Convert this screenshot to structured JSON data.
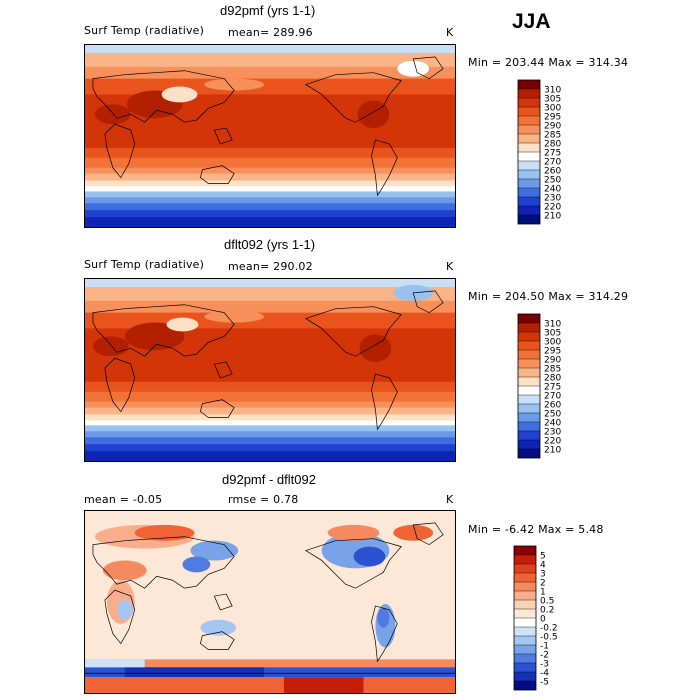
{
  "season": "JJA",
  "chart_data": [
    {
      "type": "heatmap",
      "title": "d92pmf (yrs 1-1)",
      "variable": "Surf Temp (radiative)",
      "mean_label": "mean=",
      "mean_value": "289.96",
      "units": "K",
      "min_label": "Min =",
      "min_value": "203.44",
      "max_label": "Max =",
      "max_value": "314.34",
      "colorbar": {
        "levels": [
          "310",
          "305",
          "300",
          "295",
          "290",
          "285",
          "280",
          "275",
          "270",
          "260",
          "250",
          "240",
          "230",
          "220",
          "210"
        ],
        "colors": [
          "#7a0000",
          "#b22000",
          "#d43508",
          "#e8541c",
          "#f27238",
          "#f7905a",
          "#fab487",
          "#fde0c6",
          "#ffffff",
          "#c7dff7",
          "#97c1f0",
          "#6a9ae8",
          "#3f6ee0",
          "#1e42cf",
          "#0f24b4",
          "#020e7e"
        ]
      }
    },
    {
      "type": "heatmap",
      "title": "dflt092 (yrs 1-1)",
      "variable": "Surf Temp (radiative)",
      "mean_label": "mean=",
      "mean_value": "290.02",
      "units": "K",
      "min_label": "Min =",
      "min_value": "204.50",
      "max_label": "Max =",
      "max_value": "314.29",
      "colorbar": {
        "levels": [
          "310",
          "305",
          "300",
          "295",
          "290",
          "285",
          "280",
          "275",
          "270",
          "260",
          "250",
          "240",
          "230",
          "220",
          "210"
        ],
        "colors": [
          "#7a0000",
          "#b22000",
          "#d43508",
          "#e8541c",
          "#f27238",
          "#f7905a",
          "#fab487",
          "#fde0c6",
          "#ffffff",
          "#c7dff7",
          "#97c1f0",
          "#6a9ae8",
          "#3f6ee0",
          "#1e42cf",
          "#0f24b4",
          "#020e7e"
        ]
      }
    },
    {
      "type": "heatmap",
      "title": "d92pmf - dflt092",
      "mean_label": "mean =",
      "mean_value": "-0.05",
      "rmse_label": "rmse =",
      "rmse_value": "0.78",
      "units": "K",
      "min_label": "Min =",
      "min_value": "-6.42",
      "max_label": "Max =",
      "max_value": "5.48",
      "colorbar": {
        "levels": [
          "5",
          "4",
          "3",
          "2",
          "1",
          "0.5",
          "0.2",
          "0",
          "-0.2",
          "-0.5",
          "-1",
          "-2",
          "-3",
          "-4",
          "-5"
        ],
        "colors": [
          "#8b0000",
          "#c41e0a",
          "#e0401a",
          "#ef6335",
          "#f58a5e",
          "#f9ad8a",
          "#fcd0b4",
          "#fde7d6",
          "#ffffff",
          "#cfe2f7",
          "#a5c6f0",
          "#79a3e8",
          "#4f7ce0",
          "#2a52d2",
          "#1230b8",
          "#030c82"
        ]
      }
    }
  ]
}
